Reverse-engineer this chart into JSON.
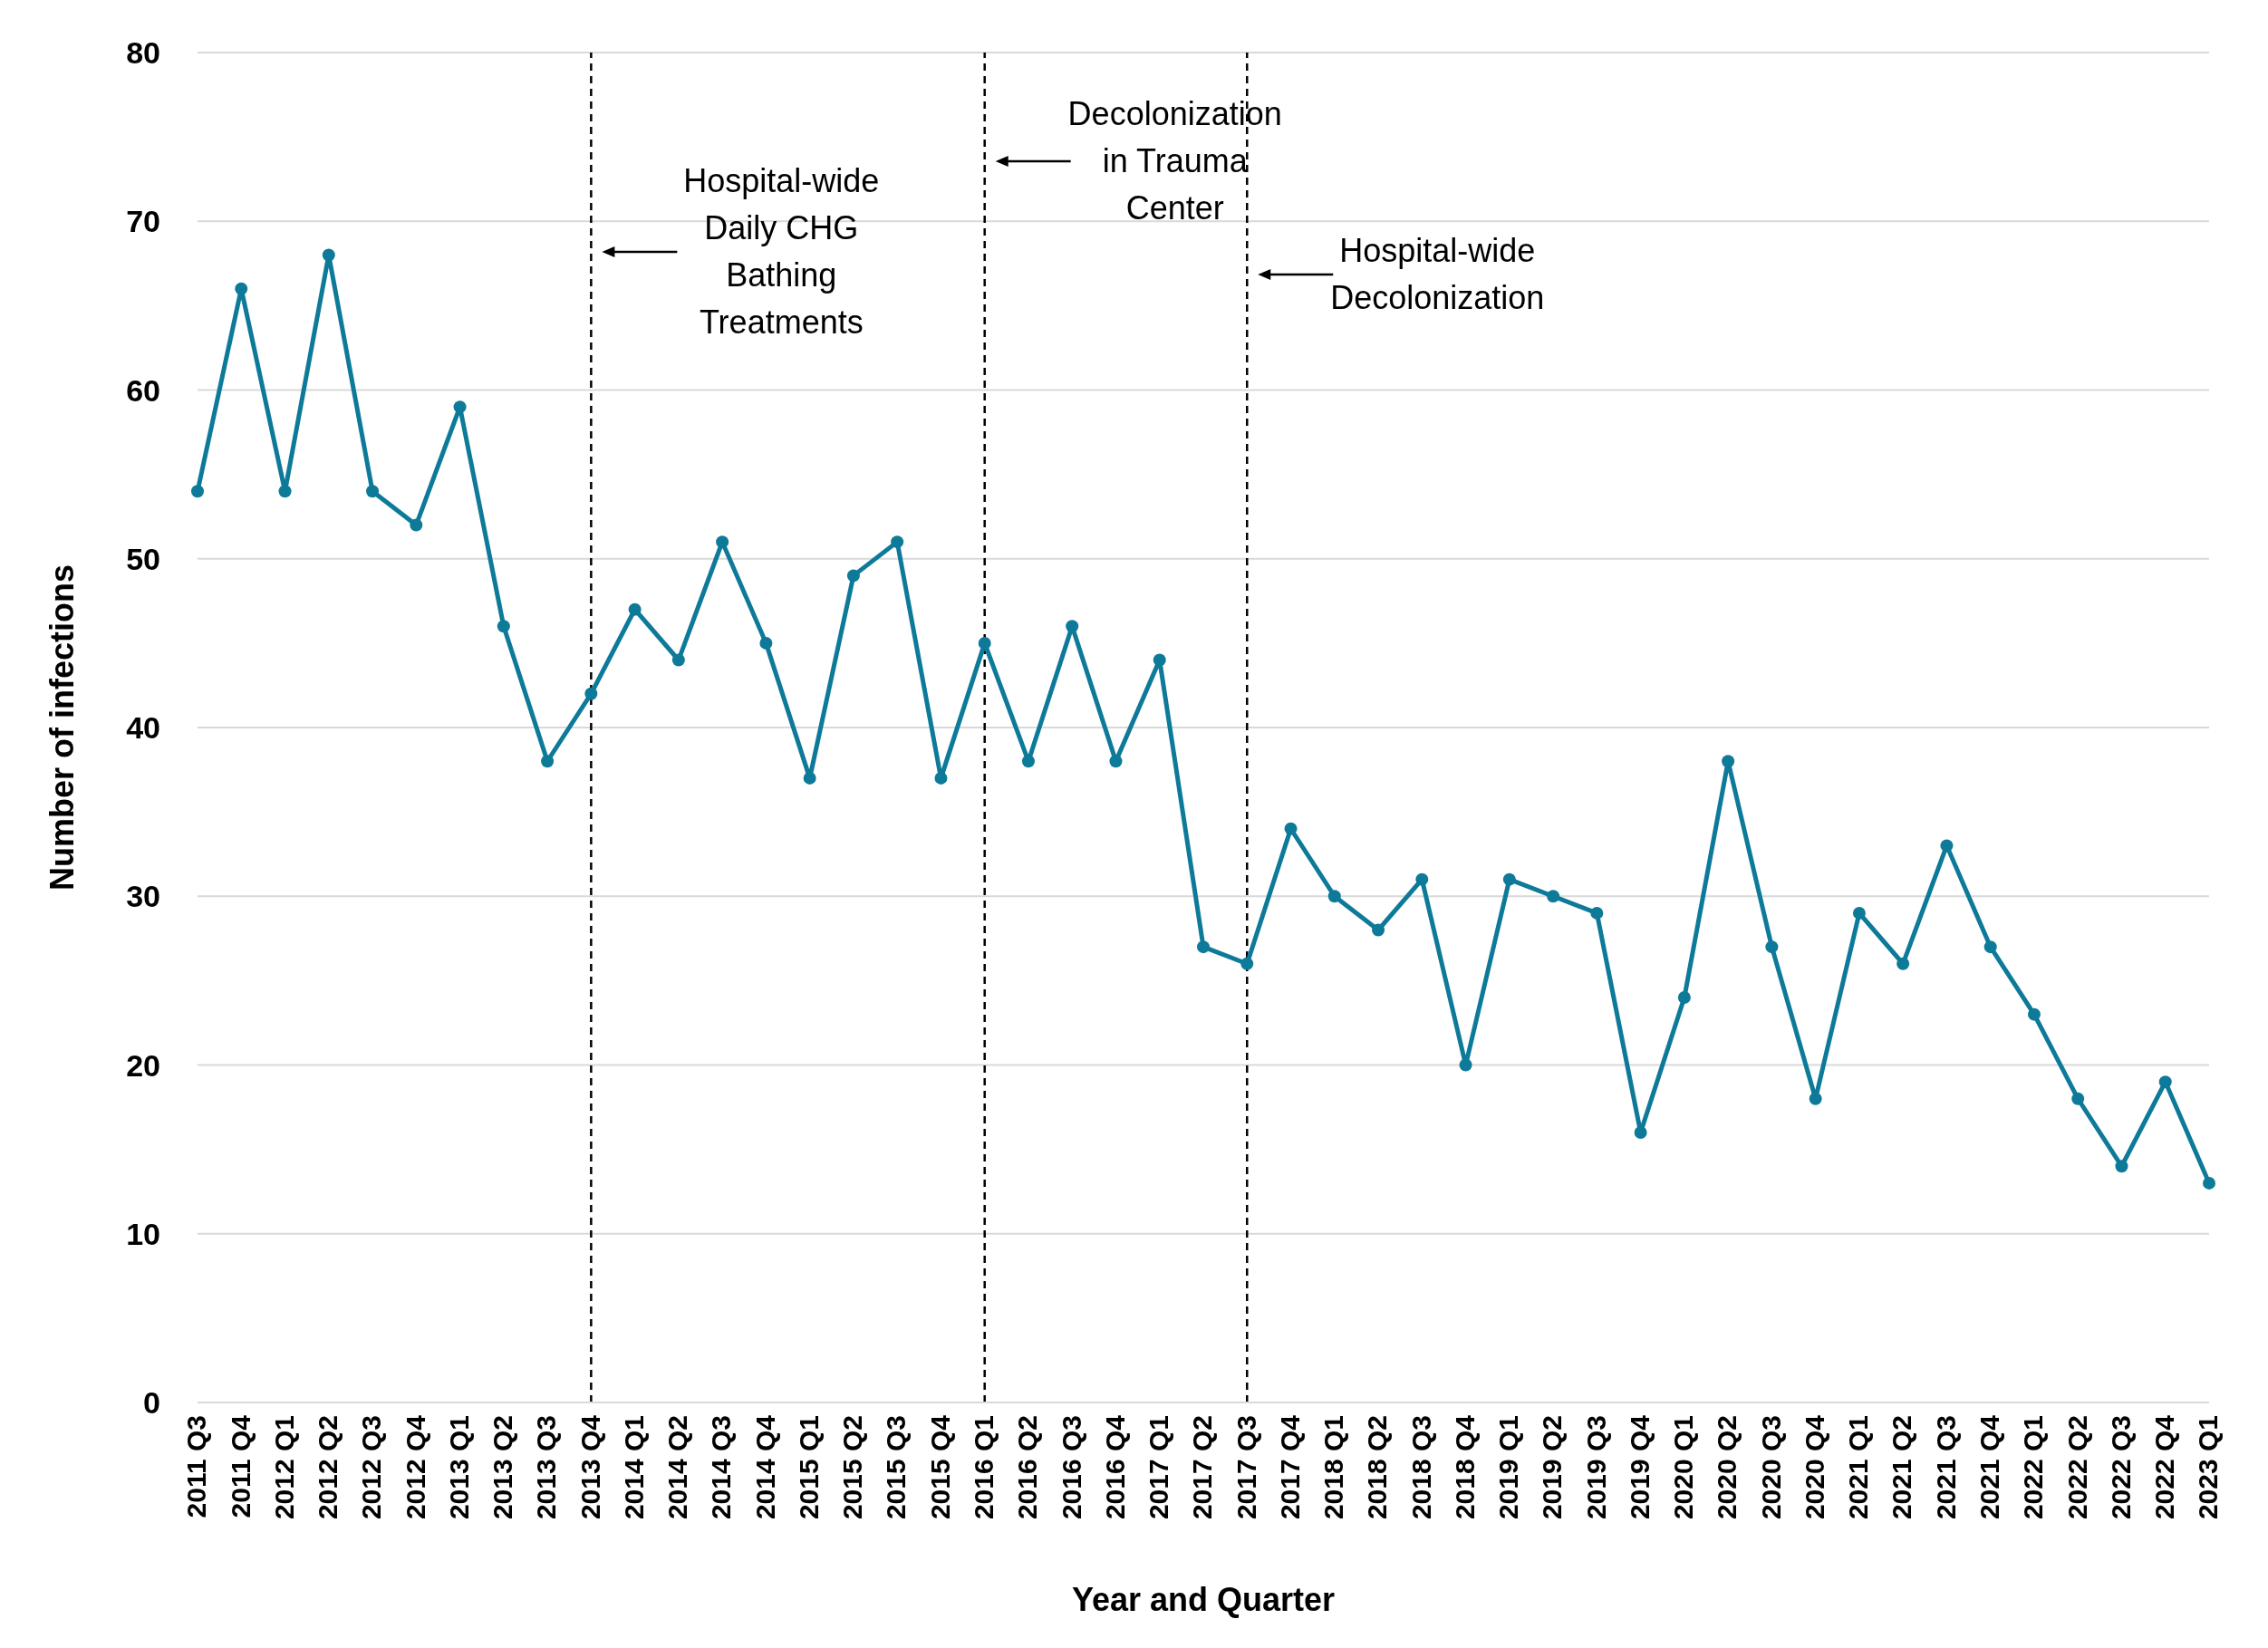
{
  "chart_data": {
    "type": "line",
    "xlabel": "Year and Quarter",
    "ylabel": "Number of infections",
    "categories": [
      "2011 Q3",
      "2011 Q4",
      "2012 Q1",
      "2012 Q2",
      "2012 Q3",
      "2012 Q4",
      "2013 Q1",
      "2013 Q2",
      "2013 Q3",
      "2013 Q4",
      "2014 Q1",
      "2014 Q2",
      "2014 Q3",
      "2014 Q4",
      "2015 Q1",
      "2015 Q2",
      "2015 Q3",
      "2015 Q4",
      "2016 Q1",
      "2016 Q2",
      "2016 Q3",
      "2016 Q4",
      "2017 Q1",
      "2017 Q2",
      "2017 Q3",
      "2017 Q4",
      "2018 Q1",
      "2018 Q2",
      "2018 Q3",
      "2018 Q4",
      "2019 Q1",
      "2019 Q2",
      "2019 Q3",
      "2019 Q4",
      "2020 Q1",
      "2020 Q2",
      "2020 Q3",
      "2020 Q4",
      "2021 Q1",
      "2021 Q2",
      "2021 Q3",
      "2021 Q4",
      "2022 Q1",
      "2022 Q2",
      "2022 Q3",
      "2022 Q4",
      "2023 Q1"
    ],
    "series": [
      {
        "color": "#0e7a99",
        "values": [
          54,
          66,
          54,
          68,
          54,
          52,
          59,
          46,
          38,
          42,
          47,
          44,
          51,
          45,
          37,
          49,
          51,
          37,
          45,
          38,
          46,
          38,
          44,
          27,
          26,
          34,
          30,
          28,
          31,
          20,
          31,
          30,
          29,
          16,
          24,
          38,
          27,
          18,
          29,
          26,
          33,
          27,
          23,
          18,
          14,
          19,
          13
        ]
      }
    ],
    "ylim": [
      0,
      80
    ],
    "yticks": [
      0,
      10,
      20,
      30,
      40,
      50,
      60,
      70,
      80
    ],
    "grid": "y",
    "marker": "circle",
    "line_style": "solid",
    "legend": false,
    "ref_lines": [
      {
        "axis": "x",
        "value": "2013 Q4",
        "label": "Hospital-wide\nDaily CHG\nBathing\nTreatments",
        "color": "#000000",
        "line_style": "dashed"
      },
      {
        "axis": "x",
        "value": "2016 Q1",
        "label": "Decolonization\nin Trauma\nCenter",
        "color": "#000000",
        "line_style": "dashed"
      },
      {
        "axis": "x",
        "value": "2017 Q3",
        "label": "Hospital-wide\nDecolonization",
        "color": "#000000",
        "line_style": "dashed"
      }
    ]
  }
}
